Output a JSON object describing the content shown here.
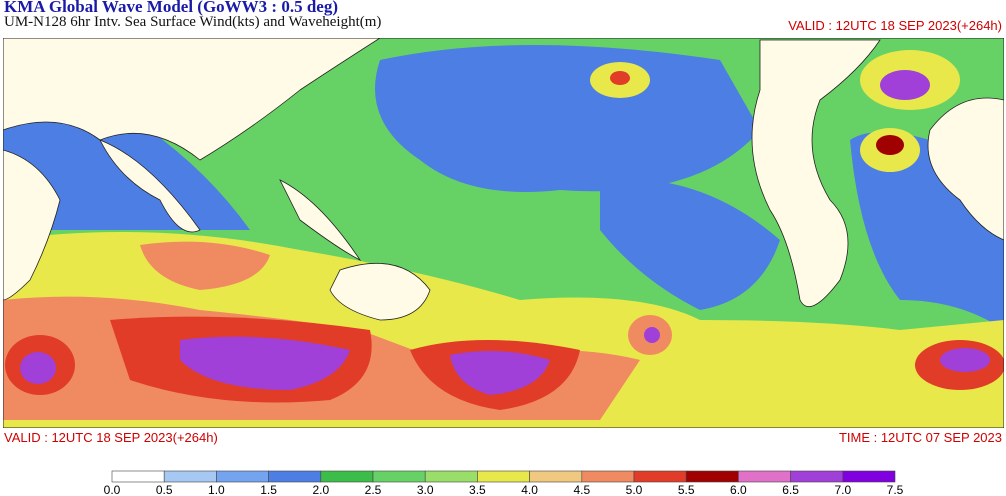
{
  "header": {
    "title": "KMA  Global Wave Model (GoWW3 : 0.5 deg)",
    "subtitle": "UM-N128  6hr Intv. Sea Surface Wind(kts) and Waveheight(m)",
    "valid": "VALID : 12UTC 18 SEP 2023(+264h)"
  },
  "footer": {
    "valid": "VALID : 12UTC 18 SEP 2023(+264h)",
    "time": "TIME : 12UTC 07 SEP 2023"
  },
  "colorbar": {
    "labels": [
      "0.0",
      "0.5",
      "1.0",
      "1.5",
      "2.0",
      "2.5",
      "3.0",
      "3.5",
      "4.0",
      "4.5",
      "5.0",
      "5.5",
      "6.0",
      "6.5",
      "7.0",
      "7.5"
    ],
    "colors": [
      "#ffffff",
      "#a8c8f4",
      "#74a4f0",
      "#4c7ee4",
      "#3cbc48",
      "#66d266",
      "#9ade6a",
      "#e8e84a",
      "#f0c880",
      "#f08a60",
      "#e03c28",
      "#a00000",
      "#e070c8",
      "#a040d8",
      "#8000e0"
    ]
  }
}
